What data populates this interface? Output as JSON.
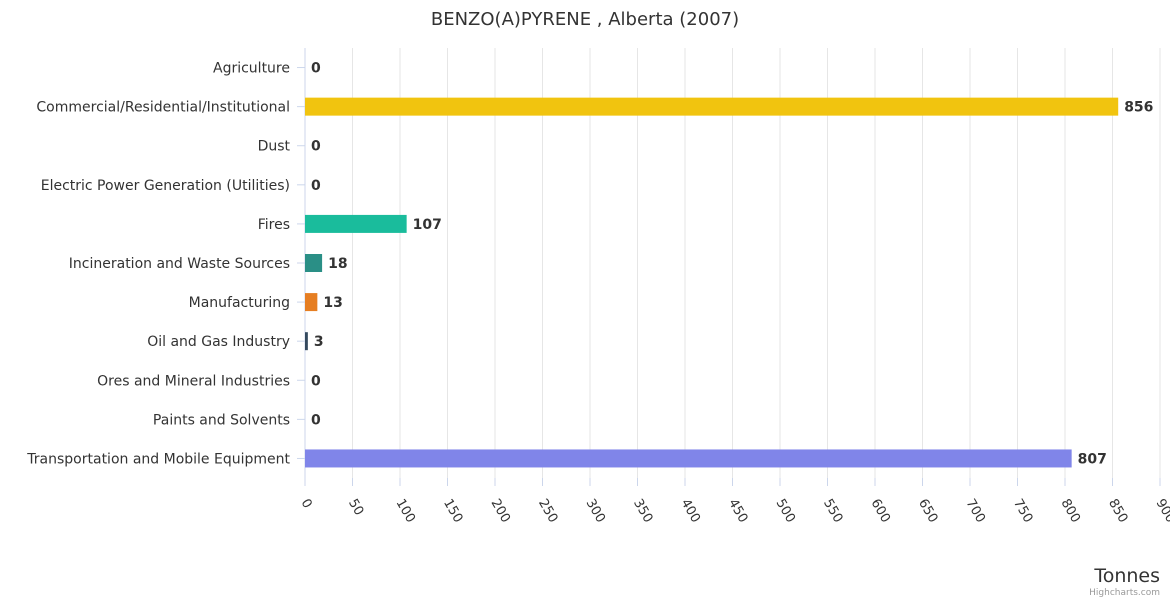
{
  "chart_data": {
    "type": "bar",
    "orientation": "horizontal",
    "title": "BENZO(A)PYRENE , Alberta (2007)",
    "xlabel": "Tonnes",
    "ylabel": "",
    "categories": [
      "Agriculture",
      "Commercial/Residential/Institutional",
      "Dust",
      "Electric Power Generation (Utilities)",
      "Fires",
      "Incineration and Waste Sources",
      "Manufacturing",
      "Oil and Gas Industry",
      "Ores and Mineral Industries",
      "Paints and Solvents",
      "Transportation and Mobile Equipment"
    ],
    "values": [
      0,
      856,
      0,
      0,
      107,
      18,
      13,
      3,
      0,
      0,
      807
    ],
    "colors": [
      "#f45b5b",
      "#f1c40f",
      "#8e44ad",
      "#2c3e50",
      "#1abc9c",
      "#2a8f86",
      "#e67e22",
      "#34495e",
      "#9b59b6",
      "#95a5a6",
      "#8085e9"
    ],
    "xlim": [
      0,
      900
    ],
    "xticks": [
      0,
      50,
      100,
      150,
      200,
      250,
      300,
      350,
      400,
      450,
      500,
      550,
      600,
      650,
      700,
      750,
      800,
      850,
      900
    ],
    "grid": true,
    "legend": "none"
  },
  "credits": "Highcharts.com"
}
